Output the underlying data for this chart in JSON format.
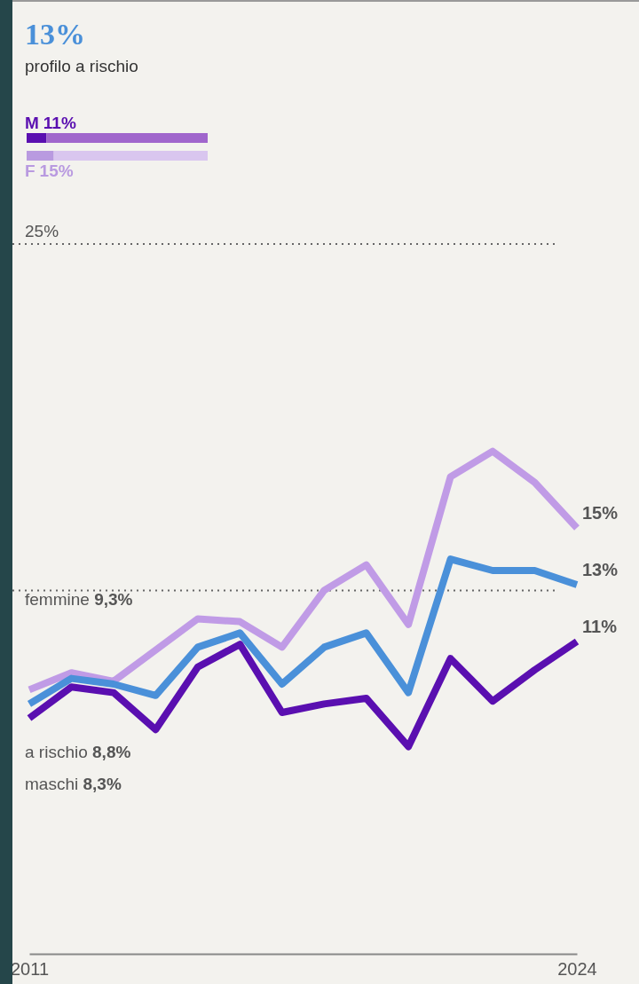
{
  "chart_data": [
    {
      "type": "bar",
      "title": "13%",
      "subtitle": "profilo a rischio",
      "orientation": "horizontal",
      "stacked": true,
      "categories": [
        "M",
        "F"
      ],
      "series": [
        {
          "colors": [
            "#5a0fb0",
            "#b99ae0"
          ],
          "values": [
            11,
            15
          ],
          "value_labels": [
            "11%",
            "15%"
          ]
        },
        {
          "colors": [
            "#a066cc",
            "#d9c6ef"
          ],
          "values": [
            89,
            85
          ]
        }
      ]
    },
    {
      "type": "line",
      "x": [
        2011,
        2012,
        2013,
        2014,
        2015,
        2016,
        2017,
        2018,
        2019,
        2020,
        2021,
        2022,
        2023,
        2024
      ],
      "xlim": [
        2011,
        2024
      ],
      "xticks": [
        2011,
        2024
      ],
      "ylim": [
        0,
        25
      ],
      "line_style": "solid",
      "annotations": [
        "femmine 9,3%",
        "a rischio 8,8%",
        "maschi 8,3%"
      ],
      "ref_lines": [
        {
          "axis": "y",
          "value": 25,
          "label": "25%",
          "line_style": "dotted"
        },
        {
          "axis": "y",
          "value": 12.8,
          "line_style": "dotted"
        }
      ],
      "series": [
        {
          "color": "#c09be6",
          "values": [
            9.3,
            9.9,
            9.6,
            10.7,
            11.8,
            11.7,
            10.8,
            12.8,
            13.7,
            11.6,
            16.8,
            17.7,
            16.6,
            15.0
          ],
          "value_labels": [
            null,
            null,
            null,
            null,
            null,
            null,
            null,
            null,
            null,
            null,
            null,
            null,
            null,
            "15%"
          ]
        },
        {
          "color": "#4a90d9",
          "values": [
            8.8,
            9.7,
            9.5,
            9.1,
            10.8,
            11.3,
            9.5,
            10.8,
            11.3,
            9.2,
            13.9,
            13.5,
            13.5,
            13.0
          ],
          "value_labels": [
            null,
            null,
            null,
            null,
            null,
            null,
            null,
            null,
            null,
            null,
            null,
            null,
            null,
            "13%"
          ]
        },
        {
          "color": "#5a0fb0",
          "values": [
            8.3,
            9.4,
            9.2,
            7.9,
            10.1,
            10.9,
            8.5,
            8.8,
            9.0,
            7.3,
            10.4,
            8.9,
            10.0,
            11.0
          ],
          "value_labels": [
            null,
            null,
            null,
            null,
            null,
            null,
            null,
            null,
            null,
            null,
            null,
            null,
            null,
            "11%"
          ]
        }
      ]
    }
  ]
}
